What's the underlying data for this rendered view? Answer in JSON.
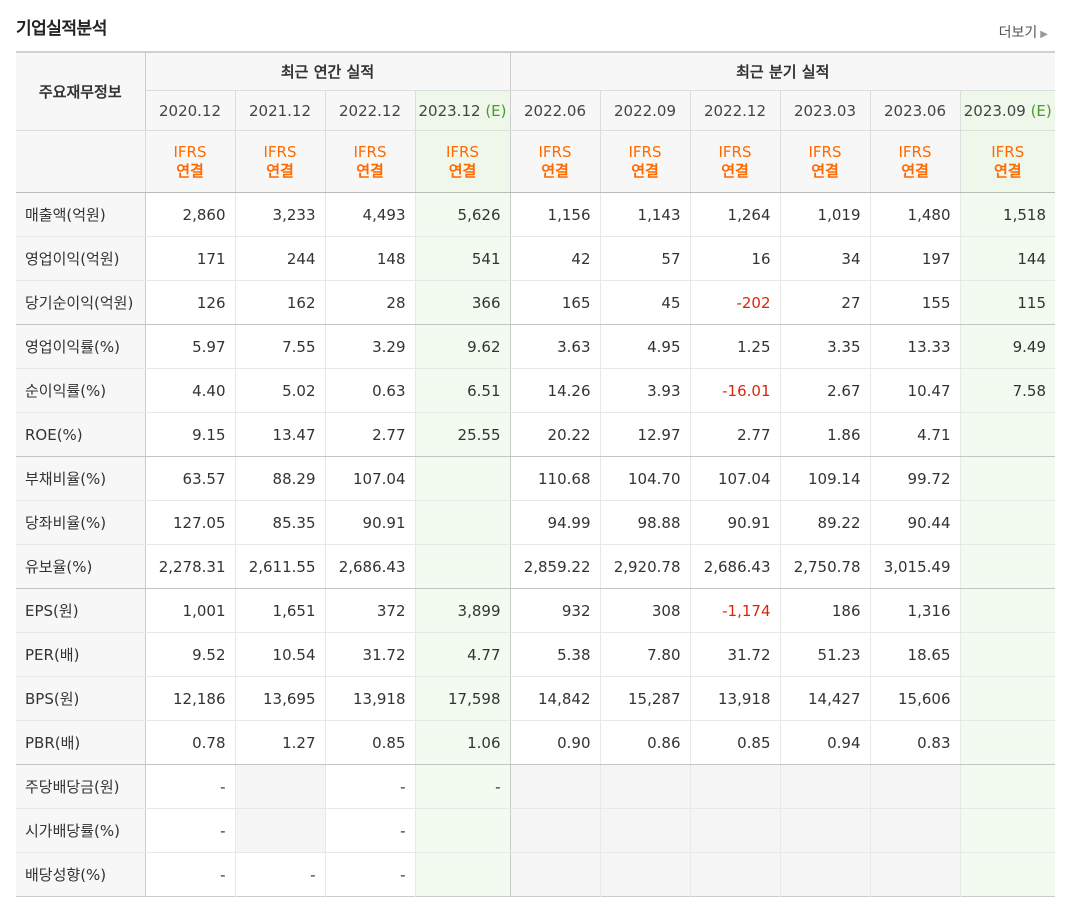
{
  "section_title": "기업실적분석",
  "more_link": "더보기",
  "header": {
    "row_label": "주요재무정보",
    "annual_group": "최근 연간 실적",
    "quarter_group": "최근 분기 실적",
    "annual_periods": [
      {
        "label": "2020.12",
        "est": ""
      },
      {
        "label": "2021.12",
        "est": ""
      },
      {
        "label": "2022.12",
        "est": ""
      },
      {
        "label": "2023.12",
        "est": "(E)"
      }
    ],
    "quarter_periods": [
      {
        "label": "2022.06",
        "est": ""
      },
      {
        "label": "2022.09",
        "est": ""
      },
      {
        "label": "2022.12",
        "est": ""
      },
      {
        "label": "2023.03",
        "est": ""
      },
      {
        "label": "2023.06",
        "est": ""
      },
      {
        "label": "2023.09",
        "est": "(E)"
      }
    ],
    "basis_line1": "IFRS",
    "basis_line2": "연결"
  },
  "rows": [
    {
      "label": "매출액(억원)",
      "values": [
        "2,860",
        "3,233",
        "4,493",
        "5,626",
        "1,156",
        "1,143",
        "1,264",
        "1,019",
        "1,480",
        "1,518"
      ]
    },
    {
      "label": "영업이익(억원)",
      "values": [
        "171",
        "244",
        "148",
        "541",
        "42",
        "57",
        "16",
        "34",
        "197",
        "144"
      ]
    },
    {
      "label": "당기순이익(억원)",
      "values": [
        "126",
        "162",
        "28",
        "366",
        "165",
        "45",
        "-202",
        "27",
        "155",
        "115"
      ]
    },
    {
      "label": "영업이익률(%)",
      "values": [
        "5.97",
        "7.55",
        "3.29",
        "9.62",
        "3.63",
        "4.95",
        "1.25",
        "3.35",
        "13.33",
        "9.49"
      ]
    },
    {
      "label": "순이익률(%)",
      "values": [
        "4.40",
        "5.02",
        "0.63",
        "6.51",
        "14.26",
        "3.93",
        "-16.01",
        "2.67",
        "10.47",
        "7.58"
      ]
    },
    {
      "label": "ROE(%)",
      "values": [
        "9.15",
        "13.47",
        "2.77",
        "25.55",
        "20.22",
        "12.97",
        "2.77",
        "1.86",
        "4.71",
        ""
      ]
    },
    {
      "label": "부채비율(%)",
      "values": [
        "63.57",
        "88.29",
        "107.04",
        "",
        "110.68",
        "104.70",
        "107.04",
        "109.14",
        "99.72",
        ""
      ]
    },
    {
      "label": "당좌비율(%)",
      "values": [
        "127.05",
        "85.35",
        "90.91",
        "",
        "94.99",
        "98.88",
        "90.91",
        "89.22",
        "90.44",
        ""
      ]
    },
    {
      "label": "유보율(%)",
      "values": [
        "2,278.31",
        "2,611.55",
        "2,686.43",
        "",
        "2,859.22",
        "2,920.78",
        "2,686.43",
        "2,750.78",
        "3,015.49",
        ""
      ]
    },
    {
      "label": "EPS(원)",
      "values": [
        "1,001",
        "1,651",
        "372",
        "3,899",
        "932",
        "308",
        "-1,174",
        "186",
        "1,316",
        ""
      ]
    },
    {
      "label": "PER(배)",
      "values": [
        "9.52",
        "10.54",
        "31.72",
        "4.77",
        "5.38",
        "7.80",
        "31.72",
        "51.23",
        "18.65",
        ""
      ]
    },
    {
      "label": "BPS(원)",
      "values": [
        "12,186",
        "13,695",
        "13,918",
        "17,598",
        "14,842",
        "15,287",
        "13,918",
        "14,427",
        "15,606",
        ""
      ]
    },
    {
      "label": "PBR(배)",
      "values": [
        "0.78",
        "1.27",
        "0.85",
        "1.06",
        "0.90",
        "0.86",
        "0.85",
        "0.94",
        "0.83",
        ""
      ]
    },
    {
      "label": "주당배당금(원)",
      "values": [
        "-",
        "",
        "-",
        "-",
        "",
        "",
        "",
        "",
        "",
        ""
      ]
    },
    {
      "label": "시가배당률(%)",
      "values": [
        "-",
        "",
        "-",
        "",
        "",
        "",
        "",
        "",
        "",
        ""
      ]
    },
    {
      "label": "배당성향(%)",
      "values": [
        "-",
        "-",
        "-",
        "",
        "",
        "",
        "",
        "",
        "",
        ""
      ]
    }
  ],
  "colors": {
    "estimate_bg": "#f3faf0",
    "basis_text": "#ff6a00",
    "negative": "#e0230b",
    "estimate_mark": "#4c9a2a"
  }
}
